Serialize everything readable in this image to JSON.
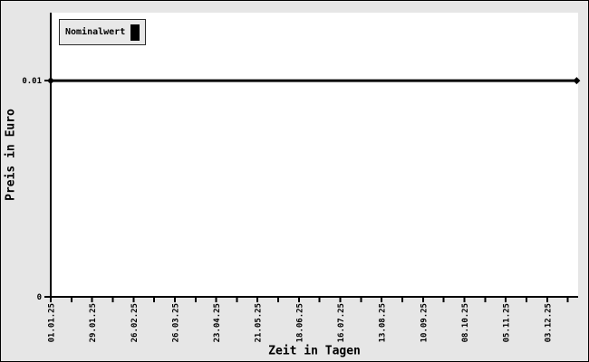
{
  "window": {
    "background": "#e6e6e6",
    "border_color": "#000000",
    "plot_background": "#ffffff"
  },
  "chart_data": {
    "type": "line",
    "title": "",
    "xlabel": "Zeit in Tagen",
    "ylabel": "Preis in Euro",
    "grid": false,
    "legend": {
      "position": "top-left",
      "entries": [
        {
          "label": "Nominalwert",
          "color": "#000000",
          "swatch": "filled-rect"
        }
      ]
    },
    "x_axis": {
      "unit": "days",
      "major_tick_labels": [
        "01.01.25",
        "29.01.25",
        "26.02.25",
        "26.03.25",
        "23.04.25",
        "21.05.25",
        "18.06.25",
        "16.07.25",
        "13.08.25",
        "10.09.25",
        "08.10.25",
        "05.11.25",
        "03.12.25"
      ],
      "major_step_days": 28,
      "minor_step_days": 14,
      "range_days": [
        0,
        357
      ],
      "label_rotation_deg": -90
    },
    "y_axis": {
      "ticks": [
        {
          "label": "0",
          "value": 0
        },
        {
          "label": "0.01",
          "value": 0.01
        }
      ],
      "range": [
        0,
        0.013146
      ]
    },
    "series": [
      {
        "name": "Nominalwert",
        "color": "#000000",
        "line_width": 3,
        "marker": "diamond",
        "points": [
          {
            "day": 0,
            "value": 0.01
          },
          {
            "day": 356,
            "value": 0.01
          }
        ]
      }
    ]
  }
}
